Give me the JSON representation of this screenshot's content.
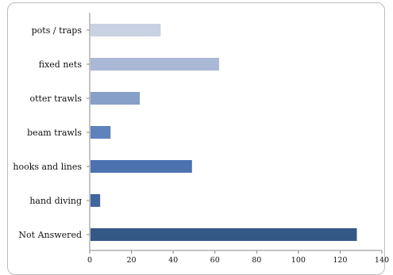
{
  "chart_data": {
    "type": "bar",
    "orientation": "horizontal",
    "title": "",
    "xlabel": "",
    "ylabel": "",
    "categories": [
      "pots / traps",
      "fixed nets",
      "otter trawls",
      "beam trawls",
      "hooks and lines",
      "hand diving",
      "Not Answered"
    ],
    "values": [
      34,
      62,
      24,
      10,
      49,
      5,
      128
    ],
    "colors": [
      "#c8d2e3",
      "#aab8d6",
      "#86a0c8",
      "#5e83bc",
      "#4c73b0",
      "#3f669f",
      "#345987"
    ],
    "xlim": [
      0,
      140
    ],
    "xticks": [
      "0",
      "20",
      "40",
      "60",
      "80",
      "100",
      "120",
      "140"
    ],
    "grid": false,
    "legend": "none"
  }
}
